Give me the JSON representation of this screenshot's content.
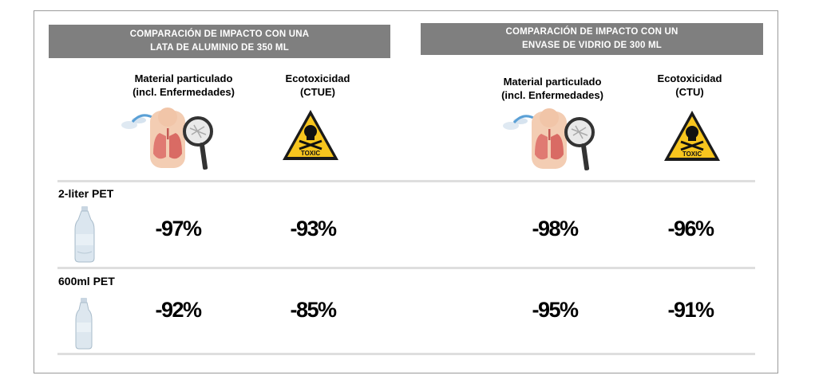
{
  "comparisons": [
    {
      "title_lines": [
        "COMPARACIÓN DE IMPACTO CON UNA",
        "LATA DE ALUMINIO DE 350 ML"
      ],
      "columns": [
        {
          "label_lines": [
            "Material particulado",
            "(incl. Enfermedades)"
          ],
          "icon": "lungs-magnifier-icon"
        },
        {
          "label_lines": [
            "Ecotoxicidad",
            "(CTUE)"
          ],
          "icon": "toxic-warning-icon"
        }
      ]
    },
    {
      "title_lines": [
        "COMPARACIÓN DE IMPACTO CON UN",
        "ENVASE DE VIDRIO DE 300 ML"
      ],
      "columns": [
        {
          "label_lines": [
            "Material particulado",
            "(incl. Enfermedades)"
          ],
          "icon": "lungs-magnifier-icon"
        },
        {
          "label_lines": [
            "Ecotoxicidad",
            "(CTU)"
          ],
          "icon": "toxic-warning-icon"
        }
      ]
    }
  ],
  "toxic_label": "TOXIC",
  "rows": [
    {
      "label": "2-liter PET",
      "icon": "large-bottle-icon",
      "values": [
        "-97%",
        "-93%",
        "-98%",
        "-96%"
      ]
    },
    {
      "label": "600ml PET",
      "icon": "small-bottle-icon",
      "values": [
        "-92%",
        "-85%",
        "-95%",
        "-91%"
      ]
    }
  ],
  "colors": {
    "banner": "#7f7f7f",
    "warning_yellow": "#f7c51e",
    "divider": "#dedede"
  }
}
